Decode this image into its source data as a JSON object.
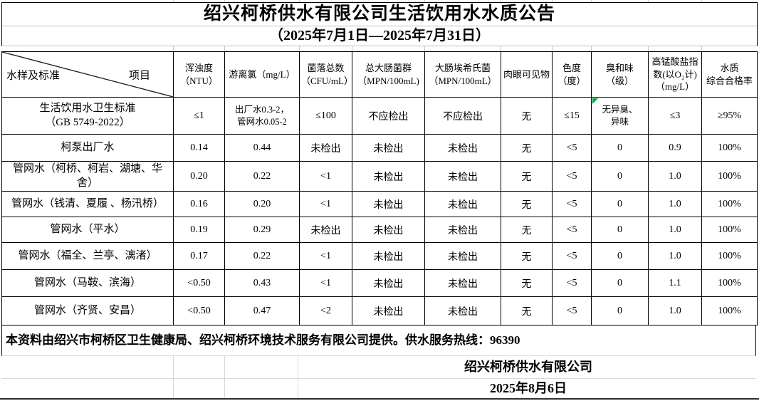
{
  "title": "绍兴柯桥供水有限公司生活饮用水水质公告",
  "subtitle": "（2025年7月1日—2025年7月31日）",
  "table": {
    "corner": {
      "item": "项目",
      "sample": "水样及标准"
    },
    "headers": [
      "浑浊度\n（NTU）",
      "游离氯（mg/L）",
      "菌落总数\n（CFU/mL）",
      "总大肠菌群\n（MPN/100mL)",
      "大肠埃希氏菌\n（MPN/100mL）",
      "肉眼可见物",
      "色度\n（度）",
      "臭和味\n（级）",
      "高锰酸盐指\n数(以O₂计)\n（mg/L）",
      "水质\n综合合格率"
    ],
    "rows": [
      {
        "name": "生活饮用水卫生标准\n（GB 5749-2022）",
        "values": [
          "≤1",
          "出厂水0.3-2，\n管网水0.05-2",
          "≤100",
          "不应检出",
          "不应检出",
          "无",
          "≤15",
          "无异臭、\n异味",
          "≤3",
          "≥95%"
        ]
      },
      {
        "name": "柯泵出厂水",
        "values": [
          "0.14",
          "0.44",
          "未检出",
          "未检出",
          "未检出",
          "无",
          "<5",
          "0",
          "0.9",
          "100%"
        ]
      },
      {
        "name": "管网水（柯桥、柯岩、湖塘、华\n舍）",
        "values": [
          "0.20",
          "0.22",
          "<1",
          "未检出",
          "未检出",
          "无",
          "<5",
          "0",
          "1.0",
          "100%"
        ]
      },
      {
        "name": "管网水（钱清、夏履 、杨汛桥）",
        "values": [
          "0.16",
          "0.20",
          "<1",
          "未检出",
          "未检出",
          "无",
          "<5",
          "0",
          "1.0",
          "100%"
        ]
      },
      {
        "name": "管网水（平水）",
        "values": [
          "0.19",
          "0.29",
          "未检出",
          "未检出",
          "未检出",
          "无",
          "<5",
          "0",
          "1.0",
          "100%"
        ]
      },
      {
        "name": "管网水（福全、兰亭、漓渚）",
        "values": [
          "0.17",
          "0.22",
          "<1",
          "未检出",
          "未检出",
          "无",
          "<5",
          "0",
          "1.0",
          "100%"
        ]
      },
      {
        "name": "管网水（马鞍、滨海）",
        "values": [
          "<0.50",
          "0.43",
          "<1",
          "未检出",
          "未检出",
          "无",
          "<5",
          "0",
          "1.1",
          "100%"
        ]
      },
      {
        "name": "管网水（齐贤、安昌）",
        "values": [
          "<0.50",
          "0.47",
          "<2",
          "未检出",
          "未检出",
          "无",
          "<5",
          "0",
          "1.0",
          "100%"
        ]
      }
    ]
  },
  "footer": {
    "note": "本资料由绍兴市柯桥区卫生健康局、绍兴柯桥环境技术服务有限公司提供。供水服务热线：96390",
    "company": "绍兴柯桥供水有限公司",
    "date": "2025年8月6日"
  },
  "colors": {
    "marker_green": "#00a650",
    "table_border": "#000000",
    "grid_light": "#d8d8d8"
  }
}
